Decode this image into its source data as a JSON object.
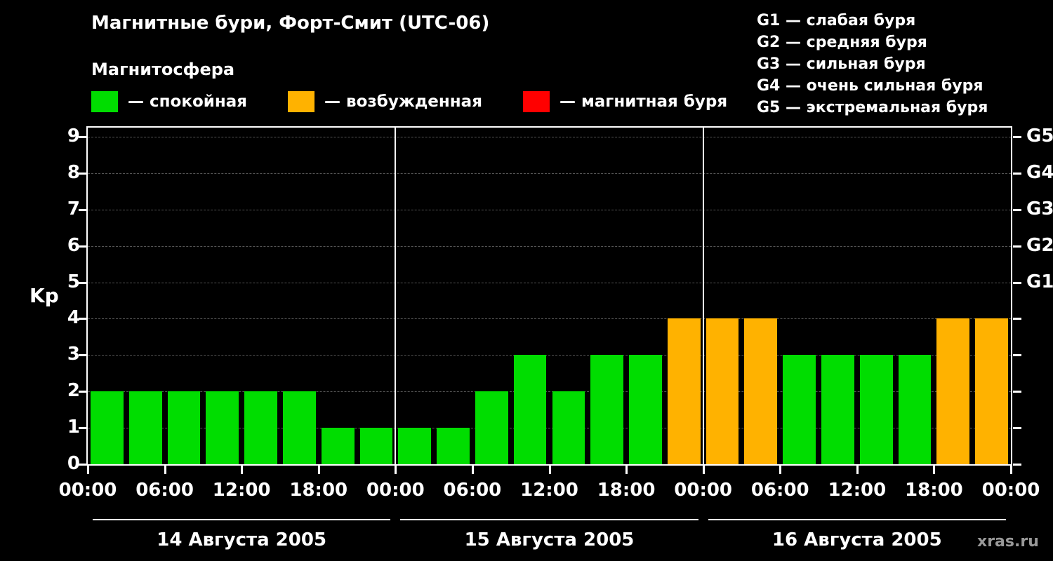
{
  "title": "Магнитные бури, Форт-Смит (UTC-06)",
  "legend": {
    "heading": "Магнитосфера",
    "items": [
      {
        "name": "quiet",
        "label": "— спокойная",
        "color": "#00dd00"
      },
      {
        "name": "active",
        "label": "— возбужденная",
        "color": "#ffb200"
      },
      {
        "name": "storm",
        "label": "— магнитная буря",
        "color": "#ff0000"
      }
    ]
  },
  "storm_scale": [
    "G1 — слабая буря",
    "G2 — средняя буря",
    "G3 — сильная буря",
    "G4 — очень сильная буря",
    "G5 — экстремальная буря"
  ],
  "watermark": "xras.ru",
  "chart_data": {
    "type": "bar",
    "title": "Магнитные бури, Форт-Смит (UTC-06)",
    "ylabel": "Kp",
    "ylim": [
      0,
      9.25
    ],
    "yticks": [
      0,
      1,
      2,
      3,
      4,
      5,
      6,
      7,
      8,
      9
    ],
    "right_axis_labels": [
      {
        "value": 5,
        "label": "G1"
      },
      {
        "value": 6,
        "label": "G2"
      },
      {
        "value": 7,
        "label": "G3"
      },
      {
        "value": 8,
        "label": "G4"
      },
      {
        "value": 9,
        "label": "G5"
      }
    ],
    "hours_per_bar": 3,
    "total_hours": 72,
    "x_ticks": [
      {
        "hour": 0,
        "label": "00:00"
      },
      {
        "hour": 6,
        "label": "06:00"
      },
      {
        "hour": 12,
        "label": "12:00"
      },
      {
        "hour": 18,
        "label": "18:00"
      },
      {
        "hour": 24,
        "label": "00:00"
      },
      {
        "hour": 30,
        "label": "06:00"
      },
      {
        "hour": 36,
        "label": "12:00"
      },
      {
        "hour": 42,
        "label": "18:00"
      },
      {
        "hour": 48,
        "label": "00:00"
      },
      {
        "hour": 54,
        "label": "06:00"
      },
      {
        "hour": 60,
        "label": "12:00"
      },
      {
        "hour": 66,
        "label": "18:00"
      },
      {
        "hour": 72,
        "label": "00:00"
      }
    ],
    "day_boundaries_hours": [
      24,
      48
    ],
    "days": [
      {
        "label": "14 Августа 2005",
        "start_hour": 0,
        "end_hour": 24
      },
      {
        "label": "15 Августа 2005",
        "start_hour": 24,
        "end_hour": 48
      },
      {
        "label": "16 Августа 2005",
        "start_hour": 48,
        "end_hour": 72
      }
    ],
    "values": [
      2,
      2,
      2,
      2,
      2,
      2,
      1,
      1,
      1,
      1,
      2,
      3,
      2,
      3,
      3,
      4,
      4,
      4,
      3,
      3,
      3,
      3,
      4,
      4
    ],
    "colors": {
      "quiet": "#00dd00",
      "active": "#ffb200",
      "storm": "#ff0000"
    },
    "color_thresholds": {
      "quiet_max": 3,
      "active_max": 4
    },
    "grid": "dashed horizontal",
    "legend_position": "top-left"
  }
}
